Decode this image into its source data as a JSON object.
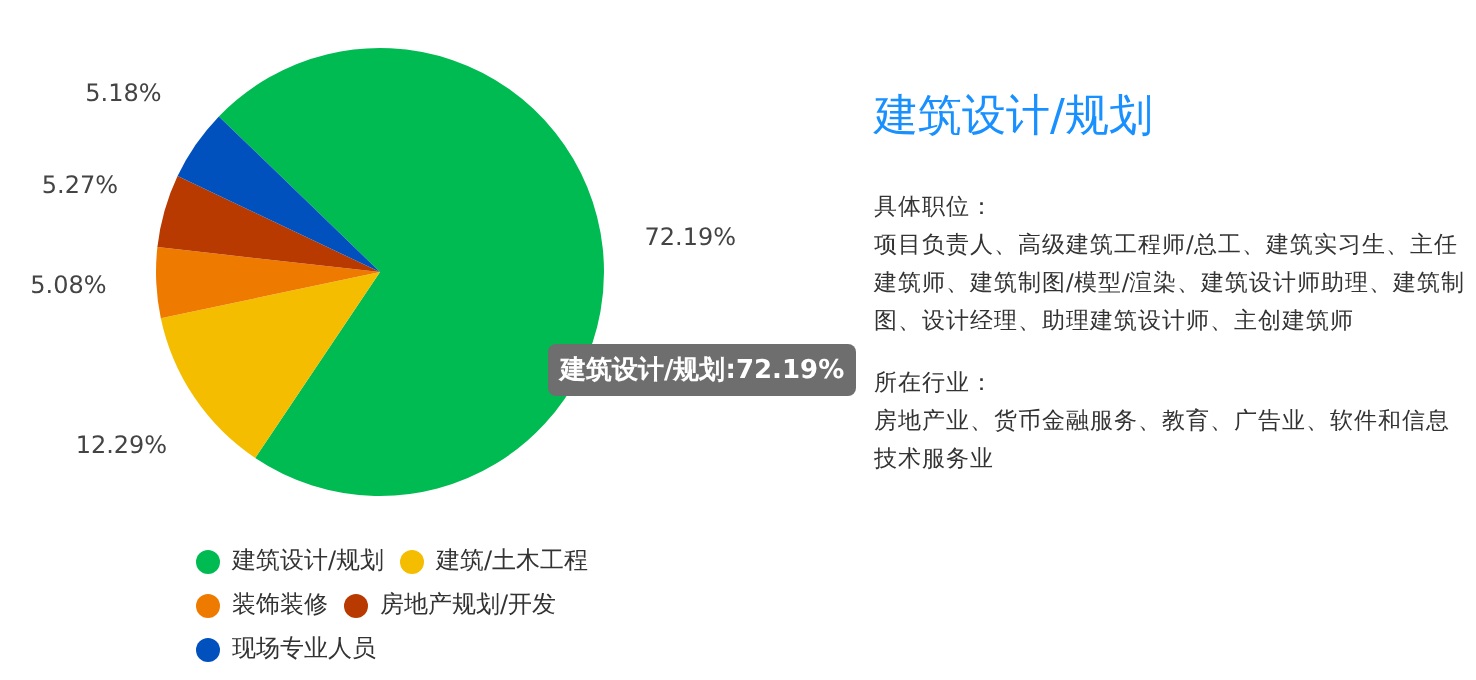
{
  "chart_data": {
    "type": "pie",
    "categories": [
      "建筑设计/规划",
      "建筑/土木工程",
      "装饰装修",
      "房地产规划/开发",
      "现场专业人员"
    ],
    "values": [
      72.19,
      12.29,
      5.08,
      5.27,
      5.18
    ],
    "value_labels": [
      "72.19%",
      "12.29%",
      "5.08%",
      "5.27%",
      "5.18%"
    ],
    "colors": [
      "#00bb52",
      "#f4bd00",
      "#ee7b00",
      "#b83a00",
      "#0050be"
    ],
    "legend": "bottom left",
    "annotations": [
      "建筑设计/规划:72.19%",
      "建筑设计/规划",
      "具体职位：",
      "项目负责人、高级建筑工程师/总工、建筑实习生、主任建筑师、建筑制图/模型/渲染、建筑设计师助理、建筑制图、设计经理、助理建筑设计师、主创建筑师",
      "所在行业：",
      "房地产业、货币金融服务、教育、广告业、软件和信息技术服务业"
    ]
  }
}
